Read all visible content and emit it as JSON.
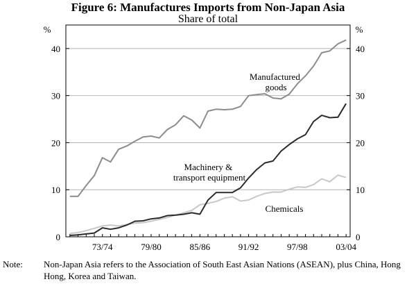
{
  "chart_data": {
    "type": "line",
    "title": "Figure 6: Manufactures Imports from Non-Japan Asia",
    "subtitle": "Share of total",
    "ylabel_left": "%",
    "ylabel_right": "%",
    "ylim": [
      0,
      45
    ],
    "yticks": [
      0,
      10,
      20,
      30,
      40
    ],
    "grid": "horizontal",
    "x_start": 1969.5,
    "x_end": 2004.5,
    "x": [
      1970,
      1971,
      1972,
      1973,
      1974,
      1975,
      1976,
      1977,
      1978,
      1979,
      1980,
      1981,
      1982,
      1983,
      1984,
      1985,
      1986,
      1987,
      1988,
      1989,
      1990,
      1991,
      1992,
      1993,
      1994,
      1995,
      1996,
      1997,
      1998,
      1999,
      2000,
      2001,
      2002,
      2003,
      2004
    ],
    "xtick_labels": [
      {
        "x": 1974,
        "label": "73/74"
      },
      {
        "x": 1980,
        "label": "79/80"
      },
      {
        "x": 1986,
        "label": "85/86"
      },
      {
        "x": 1992,
        "label": "91/92"
      },
      {
        "x": 1998,
        "label": "97/98"
      },
      {
        "x": 2004,
        "label": "03/04"
      }
    ],
    "series": [
      {
        "name": "Manufactured goods",
        "label_lines": [
          "Manufactured",
          "goods"
        ],
        "color": "#8c8c8c",
        "values": [
          8.6,
          8.6,
          10.9,
          13.0,
          16.8,
          15.9,
          18.6,
          19.3,
          20.3,
          21.2,
          21.4,
          21.0,
          22.8,
          23.8,
          25.7,
          24.8,
          23.1,
          26.7,
          27.1,
          27.0,
          27.1,
          27.7,
          30.0,
          30.2,
          30.4,
          29.5,
          29.3,
          30.3,
          32.5,
          34.2,
          36.3,
          39.1,
          39.5,
          41.0,
          41.8
        ]
      },
      {
        "name": "Machinery & transport equipment",
        "label_lines": [
          "Machinery &",
          "transport equipment"
        ],
        "color": "#2b2b2b",
        "values": [
          0.3,
          0.4,
          0.6,
          0.8,
          1.9,
          1.6,
          1.9,
          2.5,
          3.3,
          3.4,
          3.8,
          4.0,
          4.5,
          4.6,
          4.8,
          5.1,
          4.8,
          7.8,
          9.4,
          9.4,
          9.4,
          10.4,
          12.5,
          14.3,
          15.7,
          16.1,
          18.2,
          19.6,
          20.8,
          21.7,
          24.5,
          25.8,
          25.3,
          25.4,
          28.3
        ]
      },
      {
        "name": "Chemicals",
        "label_lines": [
          "Chemicals"
        ],
        "color": "#c8c8c8",
        "values": [
          0.7,
          0.9,
          1.3,
          1.8,
          2.3,
          2.5,
          2.3,
          2.6,
          2.9,
          3.0,
          3.3,
          3.7,
          4.1,
          4.6,
          5.1,
          5.6,
          6.8,
          7.1,
          7.5,
          8.2,
          8.5,
          7.6,
          7.8,
          8.6,
          9.2,
          9.5,
          9.5,
          10.1,
          10.6,
          10.5,
          11.1,
          12.3,
          11.7,
          13.1,
          12.6
        ]
      }
    ]
  },
  "note": {
    "label": "Note:",
    "text": "Non-Japan Asia refers to the Association of South East Asian Nations (ASEAN), plus China, Hong Hong, Korea and Taiwan."
  }
}
